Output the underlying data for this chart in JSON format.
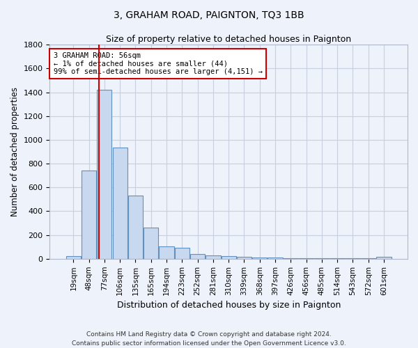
{
  "title": "3, GRAHAM ROAD, PAIGNTON, TQ3 1BB",
  "subtitle": "Size of property relative to detached houses in Paignton",
  "xlabel": "Distribution of detached houses by size in Paignton",
  "ylabel": "Number of detached properties",
  "footer": "Contains HM Land Registry data © Crown copyright and database right 2024.\nContains public sector information licensed under the Open Government Licence v3.0.",
  "bar_labels": [
    "19sqm",
    "48sqm",
    "77sqm",
    "106sqm",
    "135sqm",
    "165sqm",
    "194sqm",
    "223sqm",
    "252sqm",
    "281sqm",
    "310sqm",
    "339sqm",
    "368sqm",
    "397sqm",
    "426sqm",
    "456sqm",
    "485sqm",
    "514sqm",
    "543sqm",
    "572sqm",
    "601sqm"
  ],
  "bar_values": [
    22,
    740,
    1420,
    935,
    530,
    265,
    105,
    95,
    40,
    30,
    25,
    15,
    10,
    8,
    5,
    5,
    5,
    5,
    5,
    5,
    15
  ],
  "bar_color": "#c8d8ee",
  "bar_edge_color": "#6090c0",
  "background_color": "#eef2fa",
  "grid_color": "#c8d0e0",
  "annotation_text": "3 GRAHAM ROAD: 56sqm\n← 1% of detached houses are smaller (44)\n99% of semi-detached houses are larger (4,151) →",
  "annotation_box_color": "#ffffff",
  "annotation_box_edge": "#cc0000",
  "vline_x": 1.65,
  "vline_color": "#cc0000",
  "ylim": [
    0,
    1800
  ],
  "yticks": [
    0,
    200,
    400,
    600,
    800,
    1000,
    1200,
    1400,
    1600,
    1800
  ]
}
